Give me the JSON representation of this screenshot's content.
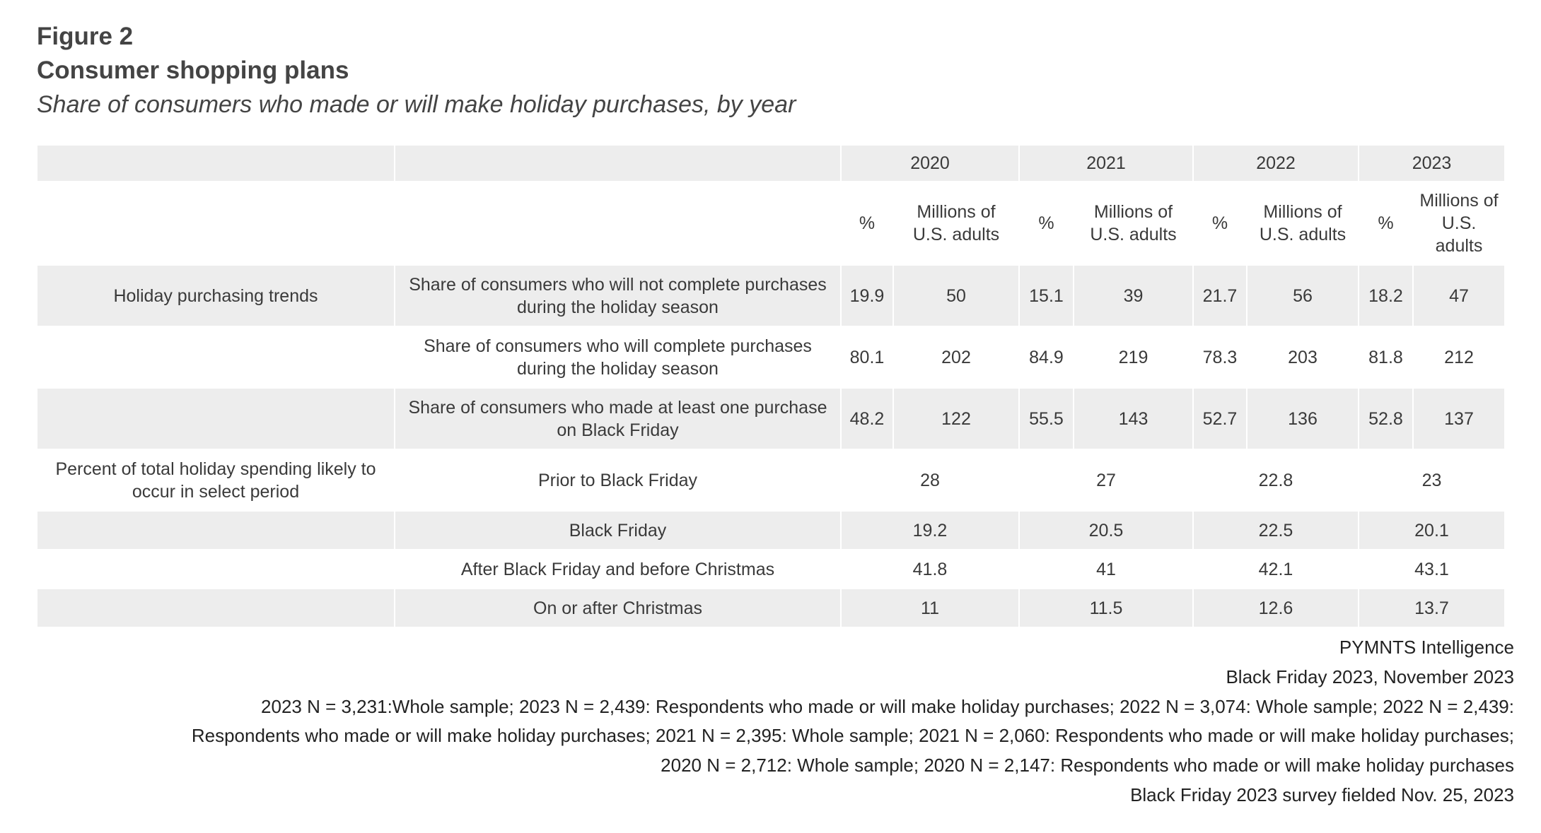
{
  "figure_label": "Figure 2",
  "title": "Consumer shopping plans",
  "subtitle": "Share of consumers who made or will make holiday purchases, by year",
  "table": {
    "years": [
      "2020",
      "2021",
      "2022",
      "2023"
    ],
    "subheaders": {
      "pct": "%",
      "millions": "Millions of U.S. adults",
      "millions_2023": "Millions of U.S. adults"
    },
    "group_rows": [
      {
        "group": "Holiday purchasing trends",
        "label": "Share of consumers who will not complete purchases during the holiday season",
        "values": [
          "19.9",
          "50",
          "15.1",
          "39",
          "21.7",
          "56",
          "18.2",
          "47"
        ]
      },
      {
        "group": "",
        "label": "Share of consumers who will complete purchases during the holiday season",
        "values": [
          "80.1",
          "202",
          "84.9",
          "219",
          "78.3",
          "203",
          "81.8",
          "212"
        ]
      },
      {
        "group": "",
        "label": "Share of consumers who made at least one purchase on Black Friday",
        "values": [
          "48.2",
          "122",
          "55.5",
          "143",
          "52.7",
          "136",
          "52.8",
          "137"
        ]
      }
    ],
    "period_rows": [
      {
        "group": "Percent of total holiday spending likely to occur in select period",
        "label": "Prior to Black Friday",
        "values": [
          "28",
          "27",
          "22.8",
          "23"
        ]
      },
      {
        "group": "",
        "label": "Black Friday",
        "values": [
          "19.2",
          "20.5",
          "22.5",
          "20.1"
        ]
      },
      {
        "group": "",
        "label": "After Black Friday and before Christmas",
        "values": [
          "41.8",
          "41",
          "42.1",
          "43.1"
        ]
      },
      {
        "group": "",
        "label": "On or after Christmas",
        "values": [
          "11",
          "11.5",
          "12.6",
          "13.7"
        ]
      }
    ]
  },
  "footer": [
    "PYMNTS Intelligence",
    "Black Friday 2023, November 2023",
    "2023 N = 3,231:Whole sample; 2023 N = 2,439: Respondents who made or will make holiday purchases; 2022 N = 3,074: Whole sample; 2022 N = 2,439:",
    "Respondents who made or will make holiday purchases; 2021 N = 2,395: Whole sample; 2021 N = 2,060: Respondents who made or will make holiday purchases;",
    "2020 N = 2,712: Whole sample; 2020 N = 2,147: Respondents who made or will make holiday purchases",
    "Black Friday 2023 survey fielded Nov. 25, 2023"
  ]
}
